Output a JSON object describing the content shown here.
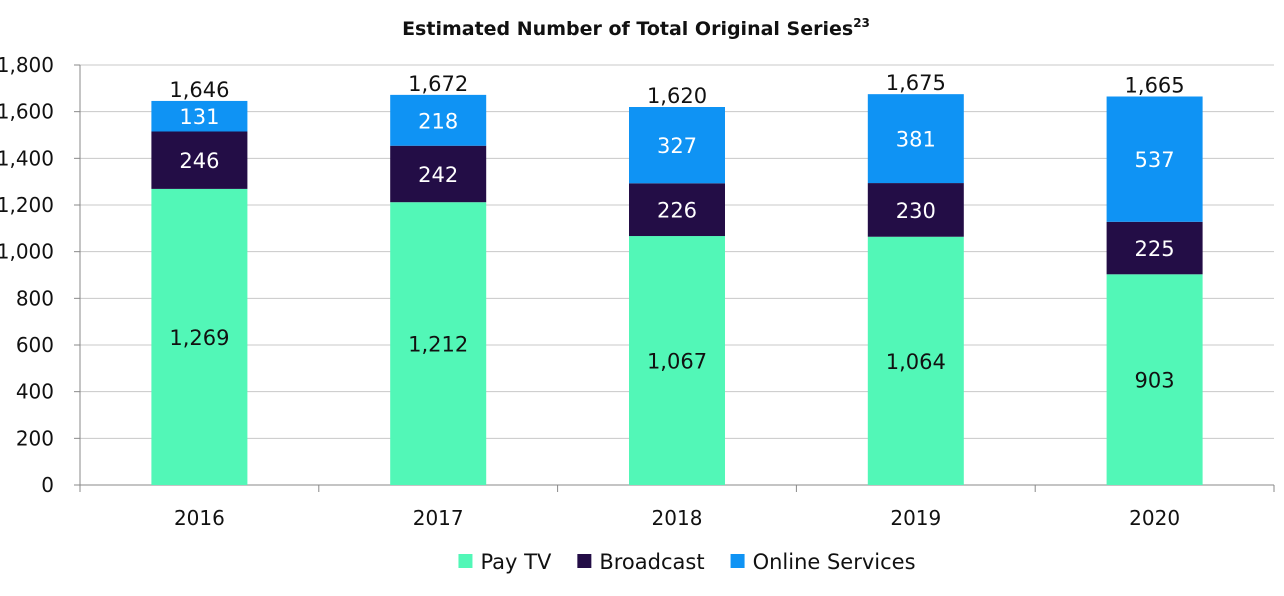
{
  "chart_data": {
    "type": "bar",
    "stacked": true,
    "title": "Estimated Number of Total Original Series",
    "title_superscript": "23",
    "categories": [
      "2016",
      "2017",
      "2018",
      "2019",
      "2020"
    ],
    "series": [
      {
        "name": "Pay TV",
        "color": "#52f7b7",
        "values": [
          1269,
          1212,
          1067,
          1064,
          903
        ],
        "value_labels": [
          "1,269",
          "1,212",
          "1,067",
          "1,064",
          "903"
        ]
      },
      {
        "name": "Broadcast",
        "color": "#230d46",
        "values": [
          246,
          242,
          226,
          230,
          225
        ],
        "value_labels": [
          "246",
          "242",
          "226",
          "230",
          "225"
        ]
      },
      {
        "name": "Online Services",
        "color": "#0f93f4",
        "values": [
          131,
          218,
          327,
          381,
          537
        ],
        "value_labels": [
          "131",
          "218",
          "327",
          "381",
          "537"
        ]
      }
    ],
    "totals": [
      1646,
      1672,
      1620,
      1675,
      1665
    ],
    "total_labels": [
      "1,646",
      "1,672",
      "1,620",
      "1,675",
      "1,665"
    ],
    "ylim": [
      0,
      1800
    ],
    "yticks": [
      0,
      200,
      400,
      600,
      800,
      1000,
      1200,
      1400,
      1600,
      1800
    ],
    "ytick_labels": [
      "0",
      "200",
      "400",
      "600",
      "800",
      "1,000",
      "1,200",
      "1,400",
      "1,600",
      "1,800"
    ],
    "xlabel": "",
    "ylabel": "",
    "grid": true,
    "legend_position": "bottom"
  }
}
